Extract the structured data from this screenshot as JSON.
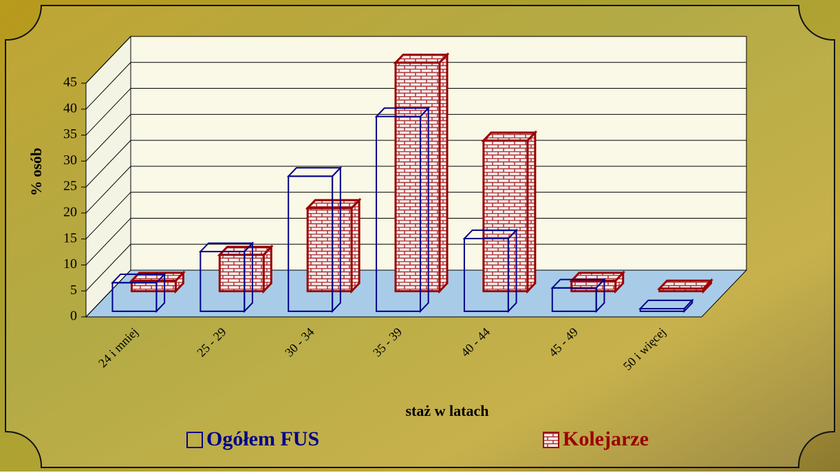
{
  "chart_data": {
    "type": "bar3d",
    "x_label": "staż w latach",
    "y_label": "% osób",
    "categories": [
      "24 i mniej",
      "25 - 29",
      "30 - 34",
      "35 - 39",
      "40 - 44",
      "45 - 49",
      "50 i więcej"
    ],
    "series": [
      {
        "name": "Ogółem FUS",
        "color": "#00008b",
        "values": [
          5.5,
          11.5,
          26,
          37.5,
          14,
          4.5,
          0.5
        ]
      },
      {
        "name": "Kolejarze",
        "color": "#990000",
        "values": [
          2,
          7,
          16,
          44,
          29,
          2,
          0.5
        ]
      }
    ],
    "ylim": [
      0,
      45
    ],
    "yticks": [
      0,
      5,
      10,
      15,
      20,
      25,
      30,
      35,
      40,
      45
    ],
    "grid": true
  }
}
